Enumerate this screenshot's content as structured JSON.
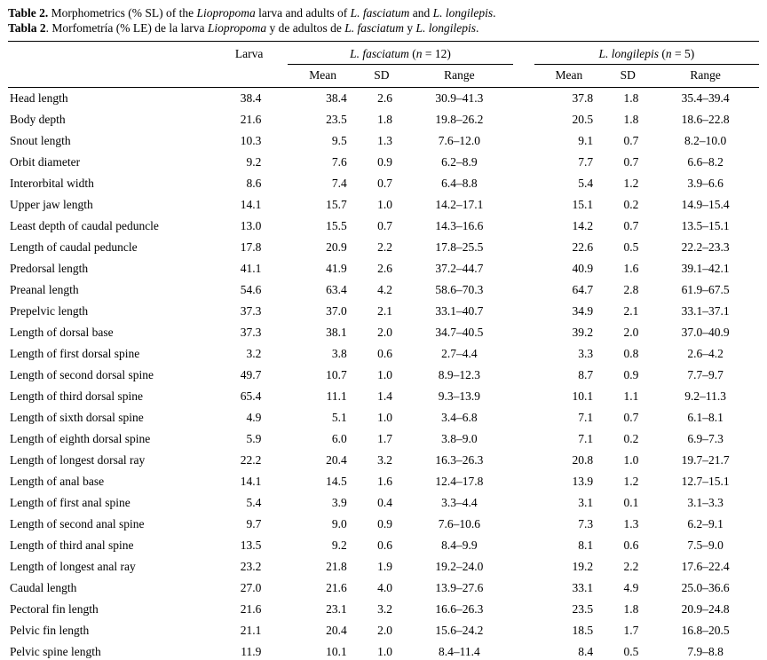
{
  "caption": {
    "english": [
      {
        "text": "Table 2.",
        "bold": true
      },
      {
        "text": " Morphometrics (% SL) of the "
      },
      {
        "text": "Liopropoma",
        "italic": true
      },
      {
        "text": " larva and adults of "
      },
      {
        "text": "L. fasciatum",
        "italic": true
      },
      {
        "text": " and "
      },
      {
        "text": "L. longilepis",
        "italic": true
      },
      {
        "text": "."
      }
    ],
    "spanish": [
      {
        "text": "Tabla 2",
        "bold": true
      },
      {
        "text": ". Morfometría (% LE) de la larva "
      },
      {
        "text": "Liopropoma",
        "italic": true
      },
      {
        "text": " y de adultos de "
      },
      {
        "text": "L. fasciatum",
        "italic": true
      },
      {
        "text": " y "
      },
      {
        "text": "L. longilepis",
        "italic": true
      },
      {
        "text": "."
      }
    ]
  },
  "table": {
    "larva_header": "Larva",
    "sub_headers": [
      "Mean",
      "SD",
      "Range"
    ],
    "groups": [
      {
        "name": "L. fasciatum",
        "n": 12,
        "label": [
          {
            "text": "L. fasciatum",
            "italic": true
          },
          {
            "text": " ("
          },
          {
            "text": "n",
            "italic": true
          },
          {
            "text": " = 12)"
          }
        ]
      },
      {
        "name": "L. longilepis",
        "n": 5,
        "label": [
          {
            "text": "L. longilepis",
            "italic": true
          },
          {
            "text": " ("
          },
          {
            "text": "n",
            "italic": true
          },
          {
            "text": " = 5)"
          }
        ]
      }
    ],
    "rows": [
      [
        "Head length",
        "38.4",
        "38.4",
        "2.6",
        "30.9–41.3",
        "37.8",
        "1.8",
        "35.4–39.4"
      ],
      [
        "Body depth",
        "21.6",
        "23.5",
        "1.8",
        "19.8–26.2",
        "20.5",
        "1.8",
        "18.6–22.8"
      ],
      [
        "Snout length",
        "10.3",
        "9.5",
        "1.3",
        "7.6–12.0",
        "9.1",
        "0.7",
        "8.2–10.0"
      ],
      [
        "Orbit diameter",
        "9.2",
        "7.6",
        "0.9",
        "6.2–8.9",
        "7.7",
        "0.7",
        "6.6–8.2"
      ],
      [
        "Interorbital width",
        "8.6",
        "7.4",
        "0.7",
        "6.4–8.8",
        "5.4",
        "1.2",
        "3.9–6.6"
      ],
      [
        "Upper jaw length",
        "14.1",
        "15.7",
        "1.0",
        "14.2–17.1",
        "15.1",
        "0.2",
        "14.9–15.4"
      ],
      [
        "Least depth of caudal peduncle",
        "13.0",
        "15.5",
        "0.7",
        "14.3–16.6",
        "14.2",
        "0.7",
        "13.5–15.1"
      ],
      [
        "Length of caudal peduncle",
        "17.8",
        "20.9",
        "2.2",
        "17.8–25.5",
        "22.6",
        "0.5",
        "22.2–23.3"
      ],
      [
        "Predorsal length",
        "41.1",
        "41.9",
        "2.6",
        "37.2–44.7",
        "40.9",
        "1.6",
        "39.1–42.1"
      ],
      [
        "Preanal length",
        "54.6",
        "63.4",
        "4.2",
        "58.6–70.3",
        "64.7",
        "2.8",
        "61.9–67.5"
      ],
      [
        "Prepelvic length",
        "37.3",
        "37.0",
        "2.1",
        "33.1–40.7",
        "34.9",
        "2.1",
        "33.1–37.1"
      ],
      [
        "Length of dorsal base",
        "37.3",
        "38.1",
        "2.0",
        "34.7–40.5",
        "39.2",
        "2.0",
        "37.0–40.9"
      ],
      [
        "Length of first dorsal spine",
        "3.2",
        "3.8",
        "0.6",
        "2.7–4.4",
        "3.3",
        "0.8",
        "2.6–4.2"
      ],
      [
        "Length of second dorsal spine",
        "49.7",
        "10.7",
        "1.0",
        "8.9–12.3",
        "8.7",
        "0.9",
        "7.7–9.7"
      ],
      [
        "Length of third dorsal spine",
        "65.4",
        "11.1",
        "1.4",
        "9.3–13.9",
        "10.1",
        "1.1",
        "9.2–11.3"
      ],
      [
        "Length of sixth dorsal spine",
        "4.9",
        "5.1",
        "1.0",
        "3.4–6.8",
        "7.1",
        "0.7",
        "6.1–8.1"
      ],
      [
        "Length of eighth dorsal spine",
        "5.9",
        "6.0",
        "1.7",
        "3.8–9.0",
        "7.1",
        "0.2",
        "6.9–7.3"
      ],
      [
        "Length of longest dorsal ray",
        "22.2",
        "20.4",
        "3.2",
        "16.3–26.3",
        "20.8",
        "1.0",
        "19.7–21.7"
      ],
      [
        "Length of anal base",
        "14.1",
        "14.5",
        "1.6",
        "12.4–17.8",
        "13.9",
        "1.2",
        "12.7–15.1"
      ],
      [
        "Length of first anal spine",
        "5.4",
        "3.9",
        "0.4",
        "3.3–4.4",
        "3.1",
        "0.1",
        "3.1–3.3"
      ],
      [
        "Length of second anal spine",
        "9.7",
        "9.0",
        "0.9",
        "7.6–10.6",
        "7.3",
        "1.3",
        "6.2–9.1"
      ],
      [
        "Length of third anal spine",
        "13.5",
        "9.2",
        "0.6",
        "8.4–9.9",
        "8.1",
        "0.6",
        "7.5–9.0"
      ],
      [
        "Length of longest anal ray",
        "23.2",
        "21.8",
        "1.9",
        "19.2–24.0",
        "19.2",
        "2.2",
        "17.6–22.4"
      ],
      [
        "Caudal length",
        "27.0",
        "21.6",
        "4.0",
        "13.9–27.6",
        "33.1",
        "4.9",
        "25.0–36.6"
      ],
      [
        "Pectoral fin length",
        "21.6",
        "23.1",
        "3.2",
        "16.6–26.3",
        "23.5",
        "1.8",
        "20.9–24.8"
      ],
      [
        "Pelvic fin length",
        "21.1",
        "20.4",
        "2.0",
        "15.6–24.2",
        "18.5",
        "1.7",
        "16.8–20.5"
      ],
      [
        "Pelvic spine length",
        "11.9",
        "10.1",
        "1.0",
        "8.4–11.4",
        "8.4",
        "0.5",
        "7.9–8.8"
      ]
    ]
  }
}
